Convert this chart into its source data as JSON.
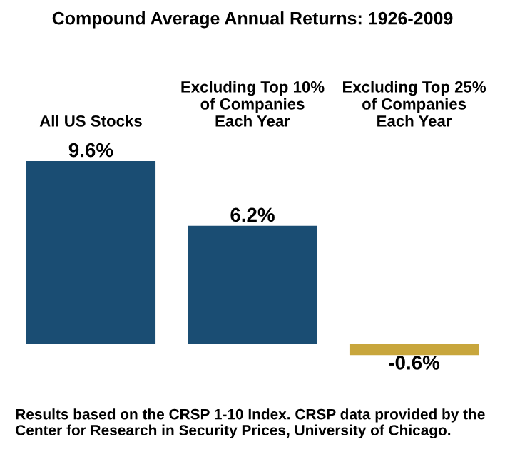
{
  "chart_data": {
    "type": "bar",
    "title": "Compound Average Annual Returns: 1926-2009",
    "categories": [
      "All US Stocks",
      "Excluding Top 10%\nof Companies\nEach Year",
      "Excluding Top 25%\nof Companies\nEach Year"
    ],
    "values": [
      9.6,
      6.2,
      -0.6
    ],
    "colors": [
      "#1a4d73",
      "#1a4d73",
      "#c8a63c"
    ],
    "value_labels": [
      "9.6%",
      "6.2%",
      "-0.6%"
    ],
    "annotations": [
      "Results based on the CRSP 1-10 Index. CRSP data provided by the Center for Research in Security Prices, University of Chicago."
    ]
  }
}
